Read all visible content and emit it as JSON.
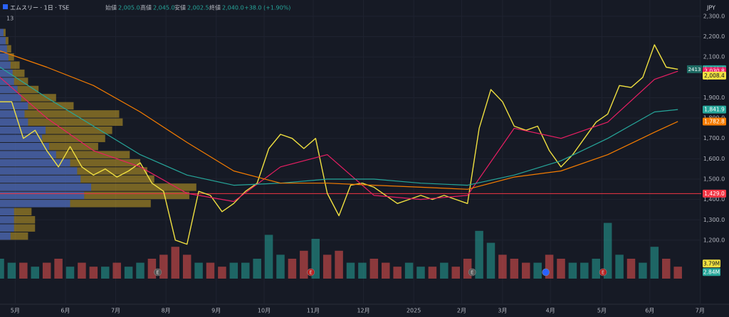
{
  "header": {
    "symbol": "エムスリー · 1日 · TSE",
    "open_label": "始値",
    "open": "2,005.0",
    "high_label": "高値",
    "high": "2,045.0",
    "low_label": "安値",
    "low": "2,002.5",
    "close_label": "終値",
    "close": "2,040.0",
    "change": "+38.0 (+1.90%)",
    "indicators": "13",
    "currency": "JPY",
    "ticker_badge": "2413"
  },
  "chart_data": {
    "type": "line",
    "xlim": [
      0,
      60
    ],
    "xticks": [
      {
        "value": 1.3,
        "label": "5月"
      },
      {
        "value": 5.6,
        "label": "6月"
      },
      {
        "value": 9.9,
        "label": "7月"
      },
      {
        "value": 14.2,
        "label": "8月"
      },
      {
        "value": 18.5,
        "label": "9月"
      },
      {
        "value": 22.6,
        "label": "10月"
      },
      {
        "value": 26.8,
        "label": "11月"
      },
      {
        "value": 31.1,
        "label": "12月"
      },
      {
        "value": 35.4,
        "label": "2025"
      },
      {
        "value": 39.5,
        "label": "2月"
      },
      {
        "value": 43.0,
        "label": "3月"
      },
      {
        "value": 47.1,
        "label": "4月"
      },
      {
        "value": 51.5,
        "label": "5月"
      },
      {
        "value": 55.6,
        "label": "6月"
      },
      {
        "value": 59.9,
        "label": "7月"
      }
    ],
    "ylim": [
      1018,
      2380
    ],
    "yticks": [
      {
        "value": 1200,
        "label": "1,200.0"
      },
      {
        "value": 1300,
        "label": "1,300.0"
      },
      {
        "value": 1400,
        "label": "1,400.0"
      },
      {
        "value": 1500,
        "label": "1,500.0"
      },
      {
        "value": 1600,
        "label": "1,600.0"
      },
      {
        "value": 1700,
        "label": "1,700.0"
      },
      {
        "value": 1800,
        "label": "1,800.0"
      },
      {
        "value": 1900,
        "label": "1,900.0"
      },
      {
        "value": 2000,
        "label": "2,000.0"
      },
      {
        "value": 2100,
        "label": "2,100.0"
      },
      {
        "value": 2200,
        "label": "2,200.0"
      },
      {
        "value": 2300,
        "label": "2,300.0"
      }
    ],
    "y2lim": [
      0,
      70
    ],
    "grid": true,
    "series": [
      {
        "color": "#f0e040",
        "x": [
          0,
          1,
          2,
          3,
          4,
          5,
          6,
          7,
          8,
          9,
          10,
          11,
          12,
          13,
          14,
          15,
          16,
          17,
          18,
          19,
          20,
          21,
          22,
          23,
          24,
          25,
          26,
          27,
          28,
          29,
          30,
          31,
          32,
          33,
          34,
          35,
          36,
          37,
          38,
          39,
          40,
          41,
          42,
          43,
          44,
          45,
          46,
          47,
          48,
          49,
          50,
          51,
          52,
          53,
          54,
          55,
          56,
          57,
          58
        ],
        "values": [
          1880,
          1880,
          1700,
          1740,
          1640,
          1560,
          1660,
          1560,
          1520,
          1550,
          1510,
          1540,
          1580,
          1480,
          1440,
          1200,
          1180,
          1440,
          1420,
          1340,
          1380,
          1440,
          1480,
          1650,
          1720,
          1700,
          1650,
          1700,
          1430,
          1320,
          1470,
          1480,
          1460,
          1420,
          1380,
          1400,
          1420,
          1400,
          1420,
          1400,
          1380,
          1750,
          1940,
          1880,
          1760,
          1740,
          1760,
          1640,
          1560,
          1620,
          1700,
          1780,
          1820,
          1960,
          1950,
          2000,
          2160,
          2050,
          2040
        ]
      },
      {
        "color": "#e91e63",
        "x": [
          0,
          4,
          8,
          12,
          16,
          20,
          24,
          28,
          32,
          36,
          40,
          44,
          48,
          52,
          56,
          58
        ],
        "values": [
          2000,
          1800,
          1640,
          1560,
          1430,
          1390,
          1560,
          1620,
          1420,
          1400,
          1420,
          1750,
          1700,
          1780,
          1990,
          2030
        ]
      },
      {
        "color": "#26a69a",
        "x": [
          0,
          4,
          8,
          12,
          16,
          20,
          24,
          28,
          32,
          36,
          40,
          44,
          48,
          52,
          56,
          58
        ],
        "values": [
          2050,
          1900,
          1760,
          1620,
          1520,
          1470,
          1480,
          1500,
          1500,
          1480,
          1470,
          1520,
          1590,
          1700,
          1830,
          1842
        ]
      },
      {
        "color": "#f57c00",
        "x": [
          0,
          4,
          8,
          12,
          16,
          20,
          24,
          28,
          32,
          36,
          40,
          44,
          48,
          52,
          56,
          58
        ],
        "values": [
          2130,
          2050,
          1960,
          1830,
          1680,
          1540,
          1480,
          1480,
          1470,
          1460,
          1450,
          1510,
          1540,
          1620,
          1730,
          1783
        ]
      }
    ],
    "volume": {
      "axis": "y2",
      "up_color": "#26a69a",
      "down_color": "#ef5350",
      "x": [
        0,
        1,
        2,
        3,
        4,
        5,
        6,
        7,
        8,
        9,
        10,
        11,
        12,
        13,
        14,
        15,
        16,
        17,
        18,
        19,
        20,
        21,
        22,
        23,
        24,
        25,
        26,
        27,
        28,
        29,
        30,
        31,
        32,
        33,
        34,
        35,
        36,
        37,
        38,
        39,
        40,
        41,
        42,
        43,
        44,
        45,
        46,
        47,
        48,
        49,
        50,
        51,
        52,
        53,
        54,
        55,
        56,
        57,
        58
      ],
      "values": [
        5,
        4,
        4,
        3,
        4,
        5,
        3,
        4,
        3,
        3,
        4,
        3,
        4,
        5,
        6,
        8,
        6,
        4,
        4,
        3,
        4,
        4,
        5,
        11,
        6,
        5,
        7,
        10,
        6,
        7,
        4,
        4,
        5,
        4,
        3,
        4,
        3,
        3,
        4,
        3,
        5,
        12,
        9,
        6,
        5,
        4,
        4,
        6,
        5,
        4,
        4,
        5,
        14,
        6,
        5,
        4,
        8,
        5,
        3
      ]
    },
    "ref_line": {
      "value": 1429,
      "color": "#f23645"
    },
    "price_labels": [
      {
        "value": 2040,
        "label": "2,040.0",
        "color": "#26a69a"
      },
      {
        "value": 2030.8,
        "label": "2,030.8",
        "color": "#e91e63"
      },
      {
        "value": 2008.4,
        "label": "2,008.4",
        "color": "#f0e040"
      },
      {
        "value": 1841.9,
        "label": "1,841.9",
        "color": "#26a69a"
      },
      {
        "value": 1782.8,
        "label": "1,782.8",
        "color": "#f57c00"
      },
      {
        "value": 1429,
        "label": "1,429.0",
        "color": "#f23645"
      }
    ],
    "volume_labels": [
      {
        "value": 3.79,
        "label": "3.79M",
        "color": "#f0e040"
      },
      {
        "value": 2.84,
        "label": "2.84M",
        "color": "#26a69a"
      }
    ],
    "profile": {
      "up_color": "#2c54c8",
      "down_color": "#c9a227",
      "prices": [
        2220,
        2180,
        2140,
        2100,
        2060,
        2020,
        1980,
        1940,
        1900,
        1860,
        1820,
        1780,
        1740,
        1700,
        1660,
        1620,
        1580,
        1540,
        1500,
        1460,
        1420,
        1380,
        1340,
        1300,
        1260,
        1220
      ],
      "up": [
        5,
        8,
        10,
        12,
        15,
        18,
        20,
        25,
        30,
        40,
        35,
        40,
        65,
        60,
        70,
        80,
        100,
        110,
        115,
        130,
        120,
        100,
        20,
        20,
        20,
        15
      ],
      "total": [
        8,
        12,
        16,
        20,
        28,
        35,
        40,
        55,
        80,
        105,
        170,
        175,
        160,
        150,
        140,
        185,
        200,
        210,
        220,
        280,
        270,
        215,
        45,
        50,
        50,
        40
      ]
    },
    "events": [
      {
        "x": 13.5,
        "label": "E",
        "color": "#555"
      },
      {
        "x": 26.6,
        "label": "E",
        "color": "#b71c1c"
      },
      {
        "x": 40.4,
        "label": "E",
        "color": "#555"
      },
      {
        "x": 46.7,
        "color": "#2962ff"
      },
      {
        "x": 51.6,
        "label": "E",
        "color": "#b71c1c"
      }
    ]
  }
}
